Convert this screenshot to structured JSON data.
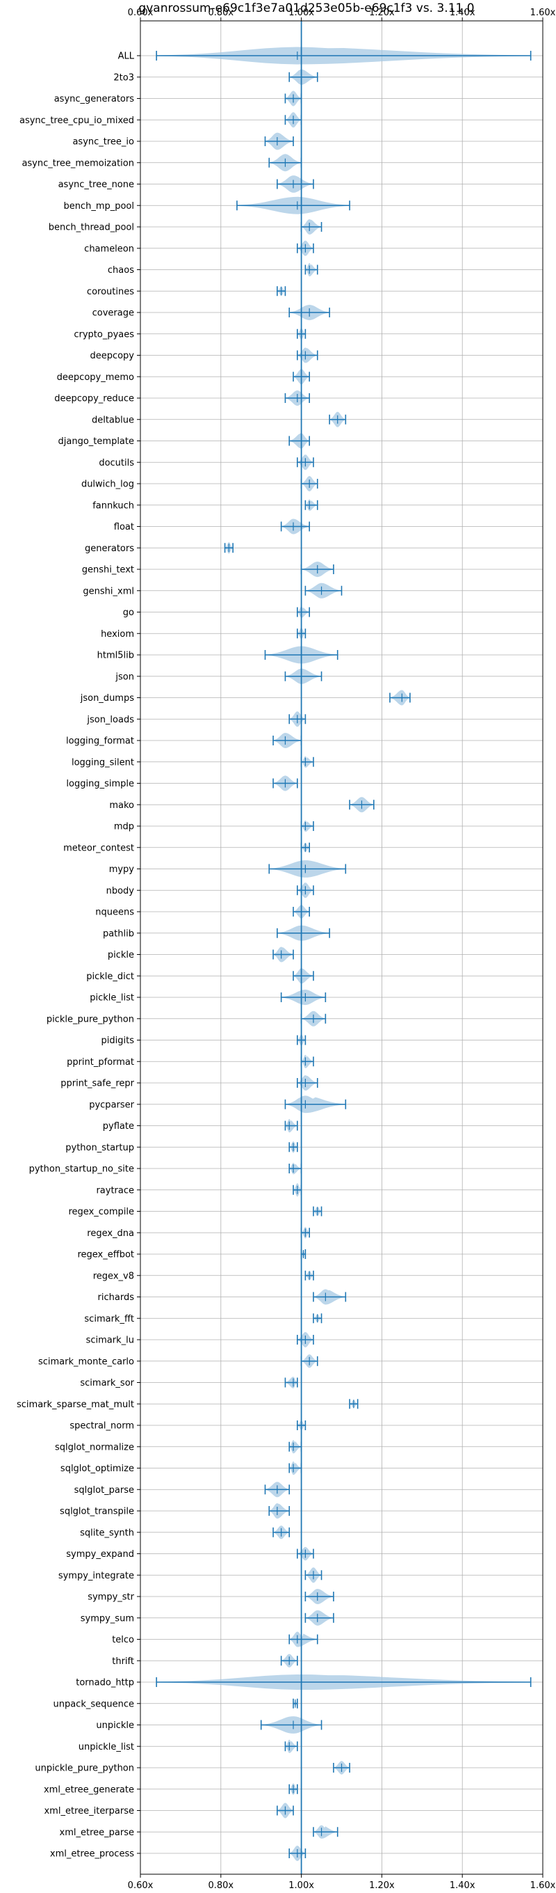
{
  "chart_data": {
    "type": "violin",
    "title": "gvanrossum-e69c1f3e7a01d253e05b-e69c1f3 vs. 3.11.0",
    "xlim": [
      0.6,
      1.6
    ],
    "xticks": [
      0.6,
      0.8,
      1.0,
      1.2,
      1.4,
      1.6
    ],
    "xtick_labels": [
      "0.60x",
      "0.80x",
      "1.00x",
      "1.20x",
      "1.40x",
      "1.60x"
    ],
    "reference_line": 1.0,
    "grid": true,
    "color": "#1f77b4",
    "fill_color": "#a6c8e3",
    "categories": [
      {
        "name": "ALL",
        "min": 0.64,
        "max": 1.57,
        "median": 0.99,
        "width": 0.9
      },
      {
        "name": "2to3",
        "min": 0.97,
        "max": 1.04,
        "median": 1.0,
        "width": 0.8
      },
      {
        "name": "async_generators",
        "min": 0.96,
        "max": 1.0,
        "median": 0.98,
        "width": 0.8
      },
      {
        "name": "async_tree_cpu_io_mixed",
        "min": 0.96,
        "max": 1.0,
        "median": 0.98,
        "width": 0.8
      },
      {
        "name": "async_tree_io",
        "min": 0.91,
        "max": 0.98,
        "median": 0.94,
        "width": 0.9
      },
      {
        "name": "async_tree_memoization",
        "min": 0.92,
        "max": 1.0,
        "median": 0.96,
        "width": 0.9
      },
      {
        "name": "async_tree_none",
        "min": 0.94,
        "max": 1.03,
        "median": 0.98,
        "width": 0.9
      },
      {
        "name": "bench_mp_pool",
        "min": 0.84,
        "max": 1.12,
        "median": 0.99,
        "width": 0.9
      },
      {
        "name": "bench_thread_pool",
        "min": 1.0,
        "max": 1.05,
        "median": 1.02,
        "width": 0.8
      },
      {
        "name": "chameleon",
        "min": 0.99,
        "max": 1.03,
        "median": 1.01,
        "width": 0.8
      },
      {
        "name": "chaos",
        "min": 1.01,
        "max": 1.04,
        "median": 1.02,
        "width": 0.7
      },
      {
        "name": "coroutines",
        "min": 0.94,
        "max": 0.96,
        "median": 0.95,
        "width": 0.5
      },
      {
        "name": "coverage",
        "min": 0.97,
        "max": 1.07,
        "median": 1.02,
        "width": 0.8
      },
      {
        "name": "crypto_pyaes",
        "min": 0.99,
        "max": 1.01,
        "median": 1.0,
        "width": 0.6
      },
      {
        "name": "deepcopy",
        "min": 0.99,
        "max": 1.04,
        "median": 1.01,
        "width": 0.8
      },
      {
        "name": "deepcopy_memo",
        "min": 0.98,
        "max": 1.02,
        "median": 1.0,
        "width": 0.8
      },
      {
        "name": "deepcopy_reduce",
        "min": 0.96,
        "max": 1.02,
        "median": 0.99,
        "width": 0.8
      },
      {
        "name": "deltablue",
        "min": 1.07,
        "max": 1.11,
        "median": 1.09,
        "width": 0.8
      },
      {
        "name": "django_template",
        "min": 0.97,
        "max": 1.02,
        "median": 1.0,
        "width": 0.8
      },
      {
        "name": "docutils",
        "min": 0.99,
        "max": 1.03,
        "median": 1.01,
        "width": 0.8
      },
      {
        "name": "dulwich_log",
        "min": 1.0,
        "max": 1.04,
        "median": 1.02,
        "width": 0.8
      },
      {
        "name": "fannkuch",
        "min": 1.01,
        "max": 1.04,
        "median": 1.02,
        "width": 0.6
      },
      {
        "name": "float",
        "min": 0.95,
        "max": 1.02,
        "median": 0.98,
        "width": 0.8
      },
      {
        "name": "generators",
        "min": 0.81,
        "max": 0.83,
        "median": 0.82,
        "width": 0.6
      },
      {
        "name": "genshi_text",
        "min": 1.0,
        "max": 1.08,
        "median": 1.04,
        "width": 0.8
      },
      {
        "name": "genshi_xml",
        "min": 1.01,
        "max": 1.1,
        "median": 1.05,
        "width": 0.8
      },
      {
        "name": "go",
        "min": 0.99,
        "max": 1.02,
        "median": 1.0,
        "width": 0.6
      },
      {
        "name": "hexiom",
        "min": 0.99,
        "max": 1.01,
        "median": 1.0,
        "width": 0.6
      },
      {
        "name": "html5lib",
        "min": 0.91,
        "max": 1.09,
        "median": 1.0,
        "width": 0.9
      },
      {
        "name": "json",
        "min": 0.96,
        "max": 1.05,
        "median": 1.0,
        "width": 0.8
      },
      {
        "name": "json_dumps",
        "min": 1.22,
        "max": 1.27,
        "median": 1.25,
        "width": 0.8
      },
      {
        "name": "json_loads",
        "min": 0.97,
        "max": 1.01,
        "median": 0.99,
        "width": 0.8
      },
      {
        "name": "logging_format",
        "min": 0.93,
        "max": 1.0,
        "median": 0.96,
        "width": 0.8
      },
      {
        "name": "logging_silent",
        "min": 1.0,
        "max": 1.03,
        "median": 1.01,
        "width": 0.6
      },
      {
        "name": "logging_simple",
        "min": 0.93,
        "max": 0.99,
        "median": 0.96,
        "width": 0.8
      },
      {
        "name": "mako",
        "min": 1.12,
        "max": 1.18,
        "median": 1.15,
        "width": 0.8
      },
      {
        "name": "mdp",
        "min": 1.0,
        "max": 1.03,
        "median": 1.01,
        "width": 0.6
      },
      {
        "name": "meteor_contest",
        "min": 1.0,
        "max": 1.02,
        "median": 1.01,
        "width": 0.5
      },
      {
        "name": "mypy",
        "min": 0.92,
        "max": 1.11,
        "median": 1.01,
        "width": 0.9
      },
      {
        "name": "nbody",
        "min": 0.99,
        "max": 1.03,
        "median": 1.01,
        "width": 0.8
      },
      {
        "name": "nqueens",
        "min": 0.98,
        "max": 1.02,
        "median": 1.0,
        "width": 0.7
      },
      {
        "name": "pathlib",
        "min": 0.94,
        "max": 1.07,
        "median": 1.0,
        "width": 0.8
      },
      {
        "name": "pickle",
        "min": 0.93,
        "max": 0.98,
        "median": 0.95,
        "width": 0.8
      },
      {
        "name": "pickle_dict",
        "min": 0.98,
        "max": 1.03,
        "median": 1.0,
        "width": 0.8
      },
      {
        "name": "pickle_list",
        "min": 0.95,
        "max": 1.06,
        "median": 1.01,
        "width": 0.8
      },
      {
        "name": "pickle_pure_python",
        "min": 1.0,
        "max": 1.06,
        "median": 1.03,
        "width": 0.8
      },
      {
        "name": "pidigits",
        "min": 0.99,
        "max": 1.01,
        "median": 1.0,
        "width": 0.6
      },
      {
        "name": "pprint_pformat",
        "min": 1.0,
        "max": 1.03,
        "median": 1.01,
        "width": 0.7
      },
      {
        "name": "pprint_safe_repr",
        "min": 0.99,
        "max": 1.04,
        "median": 1.01,
        "width": 0.8
      },
      {
        "name": "pycparser",
        "min": 0.96,
        "max": 1.11,
        "median": 1.01,
        "width": 0.9
      },
      {
        "name": "pyflate",
        "min": 0.96,
        "max": 0.99,
        "median": 0.97,
        "width": 0.7
      },
      {
        "name": "python_startup",
        "min": 0.97,
        "max": 0.99,
        "median": 0.98,
        "width": 0.6
      },
      {
        "name": "python_startup_no_site",
        "min": 0.97,
        "max": 1.0,
        "median": 0.98,
        "width": 0.6
      },
      {
        "name": "raytrace",
        "min": 0.98,
        "max": 1.0,
        "median": 0.99,
        "width": 0.7
      },
      {
        "name": "regex_compile",
        "min": 1.03,
        "max": 1.05,
        "median": 1.04,
        "width": 0.5
      },
      {
        "name": "regex_dna",
        "min": 1.0,
        "max": 1.02,
        "median": 1.01,
        "width": 0.6
      },
      {
        "name": "regex_effbot",
        "min": 1.0,
        "max": 1.01,
        "median": 1.005,
        "width": 0.4
      },
      {
        "name": "regex_v8",
        "min": 1.01,
        "max": 1.03,
        "median": 1.02,
        "width": 0.5
      },
      {
        "name": "richards",
        "min": 1.03,
        "max": 1.11,
        "median": 1.06,
        "width": 0.8
      },
      {
        "name": "scimark_fft",
        "min": 1.03,
        "max": 1.05,
        "median": 1.04,
        "width": 0.4
      },
      {
        "name": "scimark_lu",
        "min": 0.99,
        "max": 1.03,
        "median": 1.01,
        "width": 0.8
      },
      {
        "name": "scimark_monte_carlo",
        "min": 1.0,
        "max": 1.04,
        "median": 1.02,
        "width": 0.7
      },
      {
        "name": "scimark_sor",
        "min": 0.96,
        "max": 0.99,
        "median": 0.98,
        "width": 0.6
      },
      {
        "name": "scimark_sparse_mat_mult",
        "min": 1.12,
        "max": 1.14,
        "median": 1.13,
        "width": 0.4
      },
      {
        "name": "spectral_norm",
        "min": 0.99,
        "max": 1.01,
        "median": 1.0,
        "width": 0.5
      },
      {
        "name": "sqlglot_normalize",
        "min": 0.97,
        "max": 1.0,
        "median": 0.98,
        "width": 0.7
      },
      {
        "name": "sqlglot_optimize",
        "min": 0.97,
        "max": 1.0,
        "median": 0.98,
        "width": 0.7
      },
      {
        "name": "sqlglot_parse",
        "min": 0.91,
        "max": 0.97,
        "median": 0.94,
        "width": 0.8
      },
      {
        "name": "sqlglot_transpile",
        "min": 0.92,
        "max": 0.97,
        "median": 0.94,
        "width": 0.8
      },
      {
        "name": "sqlite_synth",
        "min": 0.93,
        "max": 0.97,
        "median": 0.95,
        "width": 0.7
      },
      {
        "name": "sympy_expand",
        "min": 0.99,
        "max": 1.03,
        "median": 1.01,
        "width": 0.7
      },
      {
        "name": "sympy_integrate",
        "min": 1.01,
        "max": 1.05,
        "median": 1.03,
        "width": 0.8
      },
      {
        "name": "sympy_str",
        "min": 1.01,
        "max": 1.08,
        "median": 1.04,
        "width": 0.8
      },
      {
        "name": "sympy_sum",
        "min": 1.01,
        "max": 1.08,
        "median": 1.04,
        "width": 0.8
      },
      {
        "name": "telco",
        "min": 0.97,
        "max": 1.04,
        "median": 0.99,
        "width": 0.8
      },
      {
        "name": "thrift",
        "min": 0.95,
        "max": 0.99,
        "median": 0.97,
        "width": 0.7
      },
      {
        "name": "tornado_http",
        "min": 0.64,
        "max": 1.57,
        "median": 1.0,
        "width": 0.8
      },
      {
        "name": "unpack_sequence",
        "min": 0.98,
        "max": 0.99,
        "median": 0.985,
        "width": 0.3
      },
      {
        "name": "unpickle",
        "min": 0.9,
        "max": 1.05,
        "median": 0.98,
        "width": 0.9
      },
      {
        "name": "unpickle_list",
        "min": 0.96,
        "max": 0.99,
        "median": 0.97,
        "width": 0.7
      },
      {
        "name": "unpickle_pure_python",
        "min": 1.08,
        "max": 1.12,
        "median": 1.1,
        "width": 0.7
      },
      {
        "name": "xml_etree_generate",
        "min": 0.97,
        "max": 0.99,
        "median": 0.98,
        "width": 0.6
      },
      {
        "name": "xml_etree_iterparse",
        "min": 0.94,
        "max": 0.98,
        "median": 0.96,
        "width": 0.8
      },
      {
        "name": "xml_etree_parse",
        "min": 1.03,
        "max": 1.09,
        "median": 1.05,
        "width": 0.7
      },
      {
        "name": "xml_etree_process",
        "min": 0.97,
        "max": 1.01,
        "median": 0.99,
        "width": 0.8
      }
    ]
  }
}
